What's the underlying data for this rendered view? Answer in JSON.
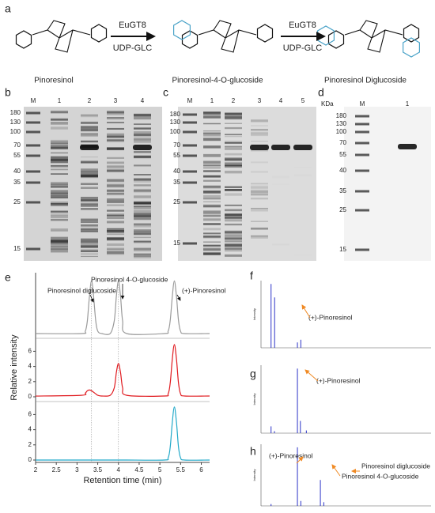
{
  "panel_labels": [
    "a",
    "b",
    "c",
    "d",
    "e",
    "f",
    "g",
    "h"
  ],
  "scheme": {
    "enzyme": [
      "EuGT8",
      "EuGT8"
    ],
    "cofactor": [
      "UDP-GLC",
      "UDP-GLC"
    ],
    "compounds": [
      "Pinoresinol",
      "Pinoresinol-4-O-glucoside",
      "Pinoresinol Diglucoside"
    ]
  },
  "gels": [
    {
      "markers": [
        180,
        130,
        100,
        70,
        55,
        40,
        35,
        25,
        15
      ],
      "lanes": [
        "M",
        "1",
        "2",
        "3",
        "4"
      ]
    },
    {
      "markers": [
        180,
        130,
        100,
        70,
        55,
        40,
        35,
        25,
        15
      ],
      "lanes": [
        "M",
        "1",
        "2",
        "3",
        "4",
        "5"
      ]
    },
    {
      "unit": "KDa",
      "markers": [
        180,
        130,
        100,
        70,
        55,
        40,
        35,
        25,
        15
      ],
      "lanes": [
        "M",
        "1"
      ]
    }
  ],
  "chart_data": [
    {
      "type": "line",
      "x_label": "Retention time (min)",
      "y_label": "Relative intensity",
      "xlim": [
        2,
        6.2
      ],
      "xticks": [
        2,
        2.5,
        3,
        3.5,
        4,
        4.5,
        5,
        5.5,
        6
      ],
      "x": [
        2,
        3.1,
        3.2,
        3.25,
        3.3,
        3.35,
        3.4,
        3.45,
        3.5,
        3.6,
        3.8,
        3.9,
        3.95,
        4.0,
        4.05,
        4.1,
        4.2,
        5.1,
        5.2,
        5.25,
        5.3,
        5.35,
        5.4,
        5.45,
        5.5,
        5.6,
        6.2
      ],
      "annotations": [
        "Pinoresinol diglucoside",
        "Pinoresinol 4-O-glucoside",
        "(+)-Pinoresinol"
      ],
      "panels": [
        {
          "color": "#9a9a9a",
          "ylim": [
            0,
            7.5
          ],
          "values": [
            0,
            0,
            0.3,
            1.6,
            4.6,
            6.5,
            4.6,
            1.6,
            0.3,
            0,
            0,
            1.6,
            4.6,
            6.5,
            4.6,
            1.6,
            0,
            0,
            0.3,
            1.6,
            4.6,
            6.5,
            4.6,
            1.6,
            0.3,
            0,
            0
          ]
        },
        {
          "color": "#e0191e",
          "ylim": [
            0,
            7.5
          ],
          "yticks": [
            0,
            2,
            4,
            6
          ],
          "values": [
            0.1,
            0.2,
            0.5,
            0.8,
            0.9,
            0.8,
            0.6,
            0.4,
            0.2,
            0.1,
            0.2,
            1.2,
            3.2,
            4.4,
            3.2,
            1.2,
            0.2,
            0.1,
            0.4,
            1.8,
            5.0,
            6.9,
            5.0,
            1.8,
            0.4,
            0.1,
            0.1
          ]
        },
        {
          "color": "#22a9c9",
          "ylim": [
            0,
            7.5
          ],
          "yticks": [
            0,
            2,
            4,
            6
          ],
          "values": [
            0,
            0,
            0,
            0,
            0,
            0,
            0,
            0,
            0,
            0,
            0,
            0,
            0,
            0,
            0,
            0,
            0,
            0,
            0.3,
            1.7,
            5.0,
            7.0,
            5.0,
            1.7,
            0.3,
            0,
            0
          ]
        }
      ]
    },
    {
      "type": "spectrum",
      "y_label": "Intensity",
      "xlim": [
        100,
        1300
      ],
      "ylim": [
        0,
        100
      ],
      "color": "#2b33c8",
      "x": [
        171,
        196,
        357,
        381
      ],
      "values": [
        95,
        75,
        8,
        12
      ],
      "annotations": [
        "(+)-Pinoresinol"
      ]
    },
    {
      "type": "spectrum",
      "y_label": "Intensity",
      "xlim": [
        100,
        1300
      ],
      "ylim": [
        0,
        100
      ],
      "color": "#2b33c8",
      "x": [
        171,
        195,
        357,
        378,
        420
      ],
      "values": [
        10,
        3,
        95,
        18,
        4
      ],
      "annotations": [
        "(+)-Pinoresinol"
      ]
    },
    {
      "type": "spectrum",
      "y_label": "Intensity",
      "xlim": [
        100,
        1300
      ],
      "ylim": [
        0,
        100
      ],
      "color": "#2b33c8",
      "x": [
        171,
        357,
        381,
        519,
        543
      ],
      "values": [
        3,
        95,
        8,
        42,
        6
      ],
      "annotations": [
        "(+)-Pinoresinol",
        "Pinoresinol 4-O-glucoside",
        "Pinoresinol diglucoside"
      ]
    }
  ]
}
